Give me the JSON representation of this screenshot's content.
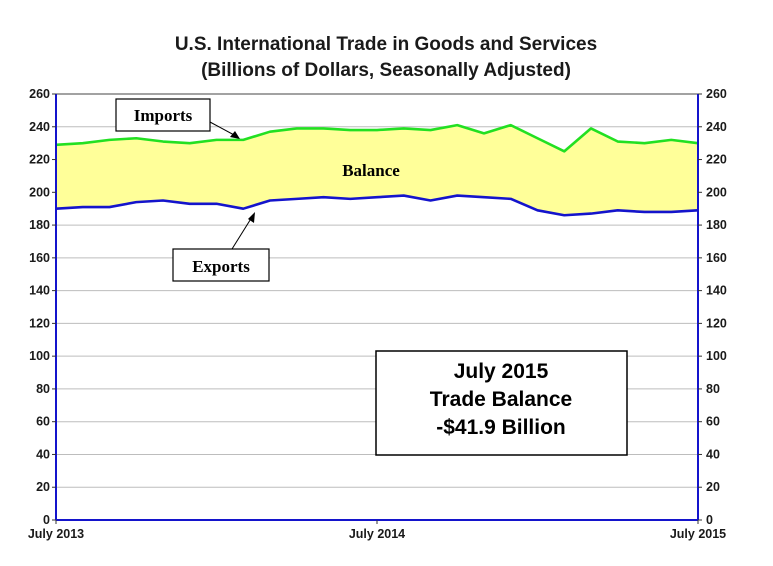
{
  "chart_data": {
    "type": "area",
    "title": "U.S. International Trade in Goods and Services",
    "subtitle": "(Billions of Dollars, Seasonally Adjusted)",
    "x_tick_labels": [
      "July 2013",
      "July 2014",
      "July 2015"
    ],
    "y_ticks": [
      0,
      20,
      40,
      60,
      80,
      100,
      120,
      140,
      160,
      180,
      200,
      220,
      240,
      260
    ],
    "y_tick_labels_right": [
      "0",
      "20",
      "40",
      "60",
      "80",
      "100",
      "120",
      "140",
      "160",
      "180",
      "200",
      "220",
      "240",
      "260"
    ],
    "ylim": [
      0,
      260
    ],
    "grid": "horizontal",
    "series": [
      {
        "name": "Imports",
        "color": "#22e022",
        "values": [
          229,
          230,
          232,
          233,
          231,
          230,
          232,
          232,
          237,
          239,
          239,
          238,
          238,
          239,
          238,
          241,
          236,
          241,
          233,
          225,
          239,
          231,
          230,
          232,
          230
        ]
      },
      {
        "name": "Exports",
        "color": "#1414cc",
        "values": [
          190,
          191,
          191,
          194,
          195,
          193,
          193,
          190,
          195,
          196,
          197,
          196,
          197,
          198,
          195,
          198,
          197,
          196,
          189,
          186,
          187,
          189,
          188,
          188,
          189
        ]
      }
    ],
    "fill_label": "Balance",
    "fill_color": "#ffff99",
    "annotation_box": {
      "lines": [
        "July 2015",
        "Trade Balance",
        "-$41.9 Billion"
      ]
    }
  }
}
